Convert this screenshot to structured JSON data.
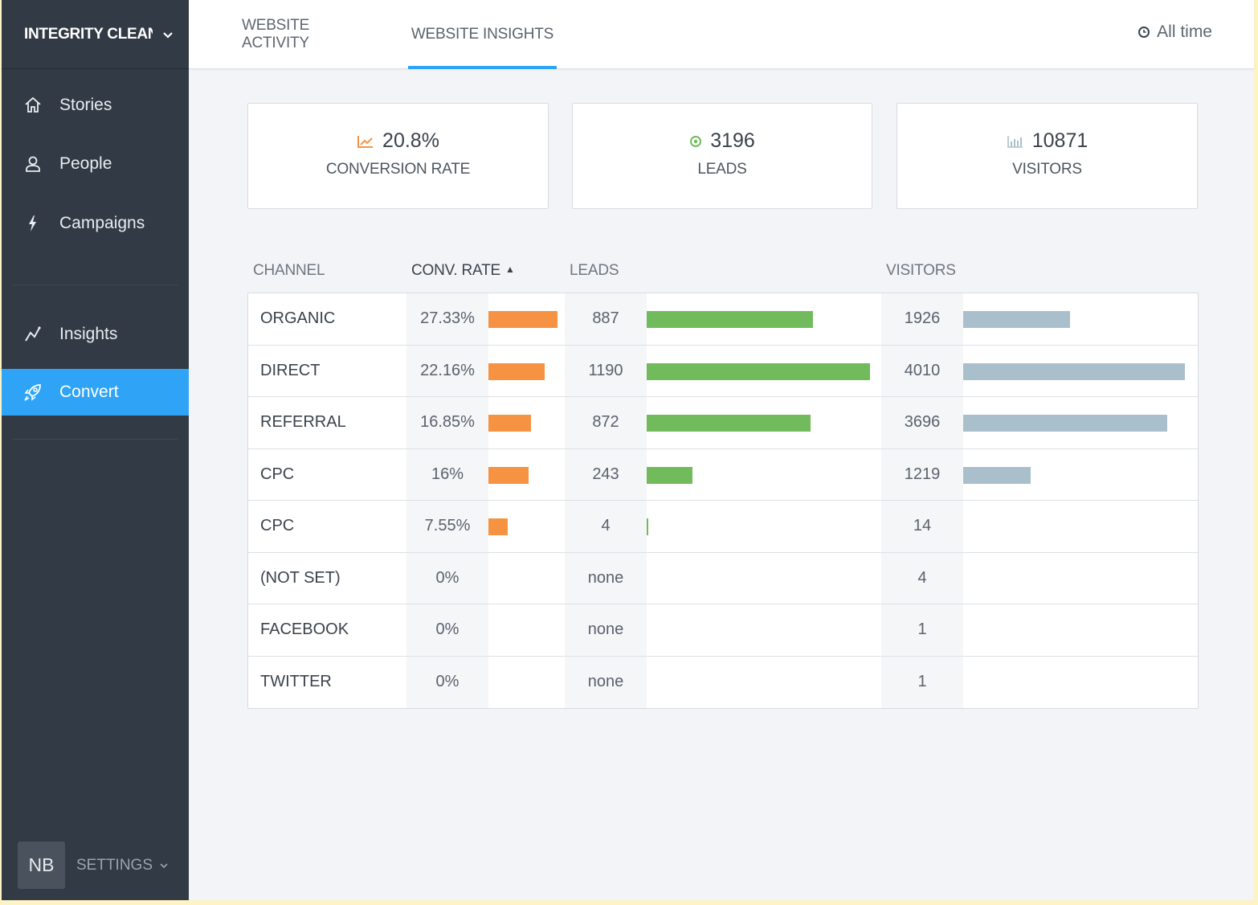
{
  "org": {
    "name": "INTEGRITY CLEAN"
  },
  "nav": {
    "items": [
      {
        "label": "Stories",
        "icon": "home-icon"
      },
      {
        "label": "People",
        "icon": "user-icon"
      },
      {
        "label": "Campaigns",
        "icon": "lightning-icon"
      },
      {
        "label": "Insights",
        "icon": "line-chart-icon"
      },
      {
        "label": "Convert",
        "icon": "rocket-icon",
        "active": true
      }
    ]
  },
  "footer": {
    "avatar": "NB",
    "settings_label": "SETTINGS"
  },
  "tabs": [
    {
      "label": "WEBSITE ACTIVITY",
      "active": false
    },
    {
      "label": "WEBSITE INSIGHTS",
      "active": true
    }
  ],
  "time_filter": "All time",
  "cards": [
    {
      "value": "20.8%",
      "label": "CONVERSION RATE",
      "icon": "trend-up-icon",
      "color": "#f59343"
    },
    {
      "value": "3196",
      "label": "LEADS",
      "icon": "target-icon",
      "color": "#71bb5c"
    },
    {
      "value": "10871",
      "label": "VISITORS",
      "icon": "bar-chart-icon",
      "color": "#a9bfcb"
    }
  ],
  "table": {
    "headers": {
      "channel": "CHANNEL",
      "conv_rate": "CONV. RATE",
      "leads": "LEADS",
      "visitors": "VISITORS"
    },
    "sort": {
      "column": "conv_rate",
      "direction": "desc"
    },
    "rows": [
      {
        "channel": "ORGANIC",
        "conv_rate": "27.33%",
        "conv_rate_value": 27.33,
        "leads": "887",
        "leads_value": 887,
        "visitors": "1926",
        "visitors_value": 1926
      },
      {
        "channel": "DIRECT",
        "conv_rate": "22.16%",
        "conv_rate_value": 22.16,
        "leads": "1190",
        "leads_value": 1190,
        "visitors": "4010",
        "visitors_value": 4010
      },
      {
        "channel": "REFERRAL",
        "conv_rate": "16.85%",
        "conv_rate_value": 16.85,
        "leads": "872",
        "leads_value": 872,
        "visitors": "3696",
        "visitors_value": 3696
      },
      {
        "channel": "CPC",
        "conv_rate": "16%",
        "conv_rate_value": 16,
        "leads": "243",
        "leads_value": 243,
        "visitors": "1219",
        "visitors_value": 1219
      },
      {
        "channel": "CPC",
        "conv_rate": "7.55%",
        "conv_rate_value": 7.55,
        "leads": "4",
        "leads_value": 4,
        "visitors": "14",
        "visitors_value": 14
      },
      {
        "channel": "(NOT SET)",
        "conv_rate": "0%",
        "conv_rate_value": 0,
        "leads": "none",
        "leads_value": 0,
        "visitors": "4",
        "visitors_value": 4
      },
      {
        "channel": "FACEBOOK",
        "conv_rate": "0%",
        "conv_rate_value": 0,
        "leads": "none",
        "leads_value": 0,
        "visitors": "1",
        "visitors_value": 1
      },
      {
        "channel": "TWITTER",
        "conv_rate": "0%",
        "conv_rate_value": 0,
        "leads": "none",
        "leads_value": 0,
        "visitors": "1",
        "visitors_value": 1
      }
    ]
  },
  "colors": {
    "accent": "#2fa4f6",
    "rate_bar": "#f59343",
    "leads_bar": "#71bb5c",
    "visitors_bar": "#a9bfcb",
    "sidebar": "#323a45"
  }
}
